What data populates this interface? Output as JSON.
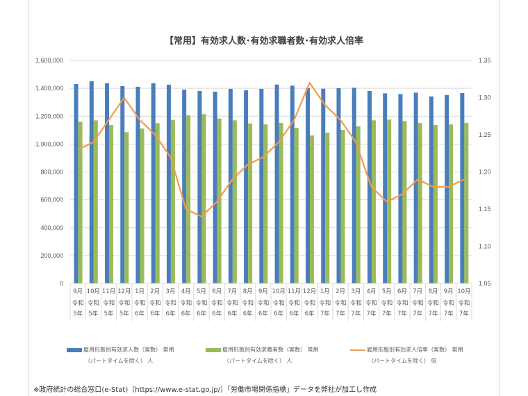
{
  "chart_data": {
    "type": "bar",
    "title": "【常用】有効求人数･有効求職者数･有効求人倍率",
    "categories": [
      [
        "9月",
        "令和",
        "5年"
      ],
      [
        "10月",
        "令和",
        "5年"
      ],
      [
        "11月",
        "令和",
        "5年"
      ],
      [
        "12月",
        "令和",
        "5年"
      ],
      [
        "1月",
        "令和",
        "6年"
      ],
      [
        "2月",
        "令和",
        "6年"
      ],
      [
        "3月",
        "令和",
        "6年"
      ],
      [
        "4月",
        "令和",
        "6年"
      ],
      [
        "5月",
        "令和",
        "6年"
      ],
      [
        "6月",
        "令和",
        "6年"
      ],
      [
        "7月",
        "令和",
        "6年"
      ],
      [
        "8月",
        "令和",
        "6年"
      ],
      [
        "9月",
        "令和",
        "6年"
      ],
      [
        "10月",
        "令和",
        "6年"
      ],
      [
        "11月",
        "令和",
        "6年"
      ],
      [
        "12月",
        "令和",
        "6年"
      ],
      [
        "1月",
        "令和",
        "7年"
      ],
      [
        "2月",
        "令和",
        "7年"
      ],
      [
        "3月",
        "令和",
        "7年"
      ],
      [
        "4月",
        "令和",
        "7年"
      ],
      [
        "5月",
        "令和",
        "7年"
      ],
      [
        "6月",
        "令和",
        "7年"
      ],
      [
        "7月",
        "令和",
        "7年"
      ],
      [
        "8月",
        "令和",
        "7年"
      ],
      [
        "9月",
        "令和",
        "7年"
      ],
      [
        "10月",
        "令和",
        "7年"
      ]
    ],
    "left_axis": {
      "ylim": [
        0,
        1600000
      ],
      "ticks": [
        "0",
        "200,000",
        "400,000",
        "600,000",
        "800,000",
        "1,000,000",
        "1,200,000",
        "1,400,000",
        "1,600,000"
      ]
    },
    "right_axis": {
      "ylim": [
        1.05,
        1.35
      ],
      "ticks": [
        "1.05",
        "1.10",
        "1.15",
        "1.20",
        "1.25",
        "1.30",
        "1.35"
      ]
    },
    "grid": true,
    "legend_placement": "bottom",
    "series": [
      {
        "name": "雇用形態別有効求人数（実数） 常用",
        "name2": "（パートタイムを除く） 人",
        "type": "bar",
        "axis": "left",
        "color": "#4a7ebb",
        "values": [
          1431000,
          1451000,
          1436000,
          1416000,
          1411000,
          1436000,
          1426000,
          1391000,
          1381000,
          1376000,
          1396000,
          1386000,
          1396000,
          1427000,
          1419000,
          1402000,
          1397000,
          1401000,
          1404000,
          1381000,
          1364000,
          1359000,
          1369000,
          1342000,
          1352000,
          1366000
        ]
      },
      {
        "name": "雇用形態別有効求職者数（実数） 常用",
        "name2": "（パートタイムを除く） 人",
        "type": "bar",
        "axis": "left",
        "color": "#9bbb59",
        "values": [
          1161000,
          1170000,
          1137000,
          1085000,
          1112000,
          1150000,
          1173000,
          1206000,
          1215000,
          1183000,
          1170000,
          1148000,
          1141000,
          1151000,
          1117000,
          1062000,
          1082000,
          1102000,
          1128000,
          1170000,
          1176000,
          1165000,
          1151000,
          1137000,
          1141000,
          1151000
        ]
      },
      {
        "name": "雇用形態別有効求人倍率（実数） 常用",
        "name2": "（パートタイムを除く） 倍",
        "type": "line",
        "axis": "right",
        "color": "#f39b4c",
        "values": [
          1.23,
          1.24,
          1.27,
          1.3,
          1.27,
          1.25,
          1.22,
          1.15,
          1.14,
          1.16,
          1.19,
          1.21,
          1.22,
          1.24,
          1.27,
          1.32,
          1.29,
          1.27,
          1.24,
          1.18,
          1.16,
          1.17,
          1.19,
          1.18,
          1.18,
          1.19
        ]
      }
    ]
  },
  "footnote": "※政府統計の総合窓口(e-Stat)（https://www.e-stat.go.jp/）「労働市場関係指標」データを弊社が加工し作成"
}
